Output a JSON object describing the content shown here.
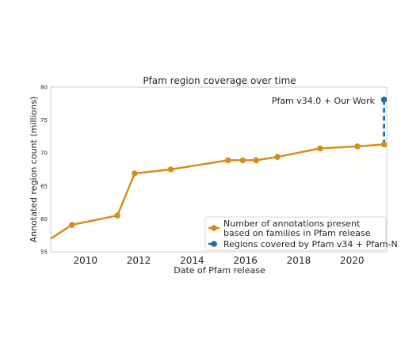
{
  "chart_data": {
    "type": "line",
    "title": "Pfam region coverage over time",
    "xlabel": "Date of Pfam release",
    "ylabel": "Annotated region count (millions)",
    "xlim": [
      2008.7,
      2021.3
    ],
    "ylim": [
      55,
      80
    ],
    "x_ticks": [
      2010,
      2012,
      2014,
      2016,
      2018,
      2020
    ],
    "x_tick_labels": [
      "2010",
      "2012",
      "2014",
      "2016",
      "2018",
      "2020"
    ],
    "y_ticks": [
      55,
      60,
      65,
      70,
      75,
      80
    ],
    "y_tick_labels": [
      "55",
      "60",
      "65",
      "70",
      "75",
      "80"
    ],
    "grid": false,
    "legend_position": "bottom-right",
    "series": [
      {
        "name": "Number of annotations present\nbased on families in Pfam release",
        "color": "#d98c1a",
        "style": "solid",
        "line_start": {
          "x": 2008.7,
          "y": 57.0
        },
        "x": [
          2009.5,
          2011.2,
          2011.85,
          2013.2,
          2015.35,
          2015.9,
          2016.4,
          2017.2,
          2018.8,
          2020.2,
          2021.2
        ],
        "y": [
          59.1,
          60.5,
          66.9,
          67.5,
          68.9,
          68.9,
          68.9,
          69.4,
          70.7,
          71.0,
          71.3
        ]
      },
      {
        "name": "Regions covered by Pfam v34 + Pfam-N",
        "color": "#1c6fa8",
        "style": "dashed",
        "x": [
          2021.2,
          2021.2
        ],
        "y": [
          71.3,
          78.1
        ]
      }
    ],
    "annotations": [
      {
        "text": "Pfam v34.0 + Our Work"
      }
    ]
  }
}
